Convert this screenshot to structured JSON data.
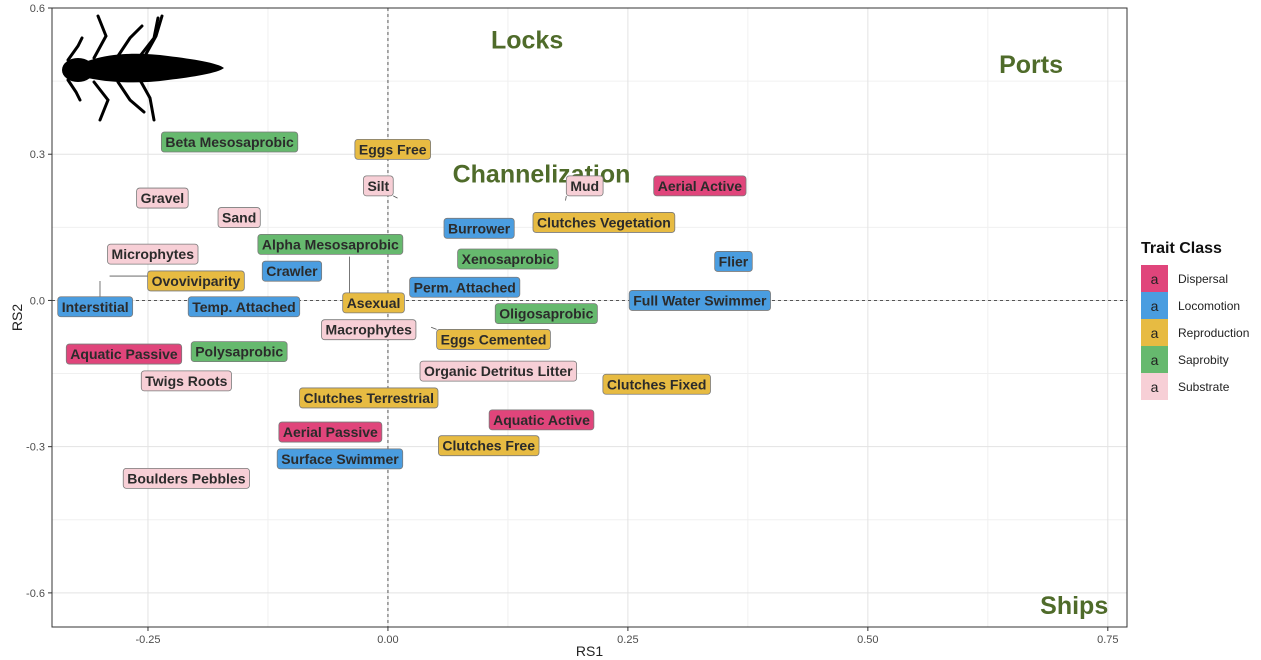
{
  "chart_data": {
    "type": "scatter",
    "xlabel": "RS1",
    "ylabel": "RS2",
    "xlim": [
      -0.35,
      0.77
    ],
    "ylim": [
      -0.67,
      0.6
    ],
    "x_ticks": [
      -0.25,
      0.0,
      0.25,
      0.5,
      0.75
    ],
    "x_tick_labels": [
      "-0.25",
      "0.00",
      "0.25",
      "0.50",
      "0.75"
    ],
    "y_ticks": [
      -0.6,
      -0.3,
      0.0,
      0.3,
      0.6
    ],
    "y_tick_labels": [
      "-0.6",
      "-0.3",
      "0.0",
      "0.3",
      "0.6"
    ],
    "grid": true,
    "reference_lines": {
      "x": 0.0,
      "y": 0.0,
      "style": "dashed"
    },
    "region_labels": [
      {
        "text": "Locks",
        "x": 0.145,
        "y": 0.535
      },
      {
        "text": "Ports",
        "x": 0.67,
        "y": 0.485
      },
      {
        "text": "Channelization",
        "x": 0.16,
        "y": 0.26
      },
      {
        "text": "Ships",
        "x": 0.715,
        "y": -0.625
      }
    ],
    "legend": {
      "title": "Trait Class",
      "position": "right",
      "key_glyph": "a",
      "items": [
        {
          "name": "Dispersal",
          "color": "#e0457b"
        },
        {
          "name": "Locomotion",
          "color": "#4a9de0"
        },
        {
          "name": "Reproduction",
          "color": "#e7bb42"
        },
        {
          "name": "Saprobity",
          "color": "#66b96e"
        },
        {
          "name": "Substrate",
          "color": "#f7cfd6"
        }
      ]
    },
    "points": [
      {
        "label": "Beta Mesosaprobic",
        "class": "Saprobity",
        "x": -0.165,
        "y": 0.325,
        "lx": -0.165,
        "ly": 0.325
      },
      {
        "label": "Eggs Free",
        "class": "Reproduction",
        "x": 0.005,
        "y": 0.31,
        "lx": 0.005,
        "ly": 0.31
      },
      {
        "label": "Silt",
        "class": "Substrate",
        "x": 0.01,
        "y": 0.21,
        "lx": -0.01,
        "ly": 0.235
      },
      {
        "label": "Mud",
        "class": "Substrate",
        "x": 0.185,
        "y": 0.205,
        "lx": 0.205,
        "ly": 0.235
      },
      {
        "label": "Aerial Active",
        "class": "Dispersal",
        "x": 0.325,
        "y": 0.235,
        "lx": 0.325,
        "ly": 0.235
      },
      {
        "label": "Gravel",
        "class": "Substrate",
        "x": -0.235,
        "y": 0.21,
        "lx": -0.235,
        "ly": 0.21
      },
      {
        "label": "Sand",
        "class": "Substrate",
        "x": -0.155,
        "y": 0.17,
        "lx": -0.155,
        "ly": 0.17
      },
      {
        "label": "Clutches Vegetation",
        "class": "Reproduction",
        "x": 0.225,
        "y": 0.16,
        "lx": 0.225,
        "ly": 0.16
      },
      {
        "label": "Burrower",
        "class": "Locomotion",
        "x": 0.095,
        "y": 0.148,
        "lx": 0.095,
        "ly": 0.148
      },
      {
        "label": "Alpha Mesosaprobic",
        "class": "Saprobity",
        "x": -0.04,
        "y": 0.09,
        "lx": -0.06,
        "ly": 0.115
      },
      {
        "label": "Microphytes",
        "class": "Substrate",
        "x": -0.245,
        "y": 0.095,
        "lx": -0.245,
        "ly": 0.095
      },
      {
        "label": "Xenosaprobic",
        "class": "Saprobity",
        "x": 0.125,
        "y": 0.085,
        "lx": 0.125,
        "ly": 0.085
      },
      {
        "label": "Flier",
        "class": "Locomotion",
        "x": 0.34,
        "y": 0.058,
        "lx": 0.36,
        "ly": 0.08
      },
      {
        "label": "Crawler",
        "class": "Locomotion",
        "x": -0.1,
        "y": 0.06,
        "lx": -0.1,
        "ly": 0.06
      },
      {
        "label": "Ovoviviparity",
        "class": "Reproduction",
        "x": -0.29,
        "y": 0.05,
        "lx": -0.2,
        "ly": 0.04
      },
      {
        "label": "Perm. Attached",
        "class": "Locomotion",
        "x": 0.06,
        "y": 0.03,
        "lx": 0.08,
        "ly": 0.027
      },
      {
        "label": "Interstitial",
        "class": "Locomotion",
        "x": -0.3,
        "y": 0.04,
        "lx": -0.305,
        "ly": -0.013
      },
      {
        "label": "Temp. Attached",
        "class": "Locomotion",
        "x": -0.15,
        "y": -0.013,
        "lx": -0.15,
        "ly": -0.013
      },
      {
        "label": "Asexual",
        "class": "Reproduction",
        "x": -0.04,
        "y": 0.09,
        "lx": -0.015,
        "ly": -0.005
      },
      {
        "label": "Full Water Swimmer",
        "class": "Locomotion",
        "x": 0.325,
        "y": 0.0,
        "lx": 0.325,
        "ly": 0.0
      },
      {
        "label": "Oligosaprobic",
        "class": "Saprobity",
        "x": 0.165,
        "y": -0.027,
        "lx": 0.165,
        "ly": -0.027
      },
      {
        "label": "Macrophytes",
        "class": "Substrate",
        "x": -0.02,
        "y": -0.06,
        "lx": -0.02,
        "ly": -0.06
      },
      {
        "label": "Eggs Cemented",
        "class": "Reproduction",
        "x": 0.045,
        "y": -0.055,
        "lx": 0.11,
        "ly": -0.08
      },
      {
        "label": "Aquatic Passive",
        "class": "Dispersal",
        "x": -0.275,
        "y": -0.11,
        "lx": -0.275,
        "ly": -0.11
      },
      {
        "label": "Polysaprobic",
        "class": "Saprobity",
        "x": -0.155,
        "y": -0.105,
        "lx": -0.155,
        "ly": -0.105
      },
      {
        "label": "Organic Detritus Litter",
        "class": "Substrate",
        "x": 0.115,
        "y": -0.145,
        "lx": 0.115,
        "ly": -0.145
      },
      {
        "label": "Twigs Roots",
        "class": "Substrate",
        "x": -0.21,
        "y": -0.165,
        "lx": -0.21,
        "ly": -0.165
      },
      {
        "label": "Clutches Fixed",
        "class": "Reproduction",
        "x": 0.28,
        "y": -0.172,
        "lx": 0.28,
        "ly": -0.172
      },
      {
        "label": "Clutches Terrestrial",
        "class": "Reproduction",
        "x": -0.02,
        "y": -0.2,
        "lx": -0.02,
        "ly": -0.2
      },
      {
        "label": "Aquatic Active",
        "class": "Dispersal",
        "x": 0.16,
        "y": -0.245,
        "lx": 0.16,
        "ly": -0.245
      },
      {
        "label": "Aerial Passive",
        "class": "Dispersal",
        "x": -0.06,
        "y": -0.27,
        "lx": -0.06,
        "ly": -0.27
      },
      {
        "label": "Clutches Free",
        "class": "Reproduction",
        "x": 0.105,
        "y": -0.298,
        "lx": 0.105,
        "ly": -0.298
      },
      {
        "label": "Surface Swimmer",
        "class": "Locomotion",
        "x": -0.05,
        "y": -0.325,
        "lx": -0.05,
        "ly": -0.325
      },
      {
        "label": "Boulders Pebbles",
        "class": "Substrate",
        "x": -0.21,
        "y": -0.365,
        "lx": -0.21,
        "ly": -0.365
      }
    ]
  }
}
